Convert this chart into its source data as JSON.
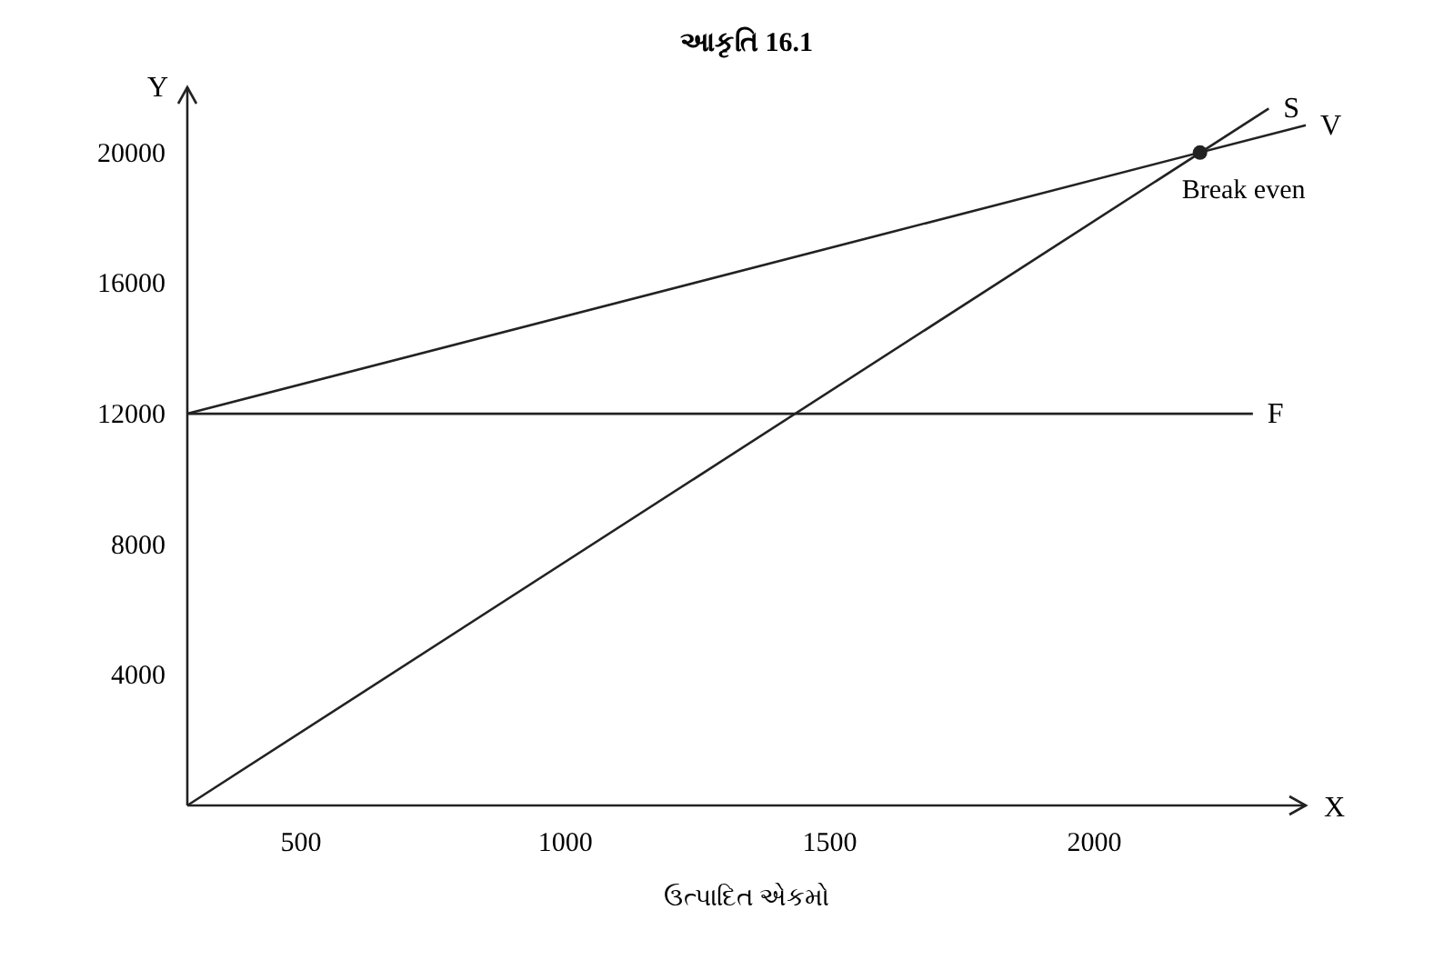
{
  "chart_data": {
    "type": "line",
    "title": "આકૃતિ 16.1",
    "xlabel": "ઉત્પાદિત એકમો",
    "ylabel": "Y",
    "xlim": [
      285,
      2400
    ],
    "ylim": [
      0,
      22000
    ],
    "xticks": [
      500,
      1000,
      1500,
      2000
    ],
    "yticks": [
      4000,
      8000,
      12000,
      16000,
      20000
    ],
    "series": [
      {
        "name": "S",
        "color": "#222222",
        "x": [
          285,
          2330
        ],
        "values": [
          0,
          21350
        ]
      },
      {
        "name": "V",
        "color": "#222222",
        "x": [
          285,
          2400
        ],
        "values": [
          12000,
          20840
        ]
      },
      {
        "name": "F",
        "color": "#222222",
        "x": [
          285,
          2300
        ],
        "values": [
          12000,
          12000
        ]
      },
      {
        "type": "scatter",
        "marker": "circle",
        "color": "#222222",
        "x": [
          2200
        ],
        "values": [
          20000
        ]
      }
    ],
    "annotations": [
      {
        "text": "Break even",
        "x": 2200,
        "y": 20000
      },
      "X"
    ],
    "line_style": "solid",
    "grid": false
  }
}
